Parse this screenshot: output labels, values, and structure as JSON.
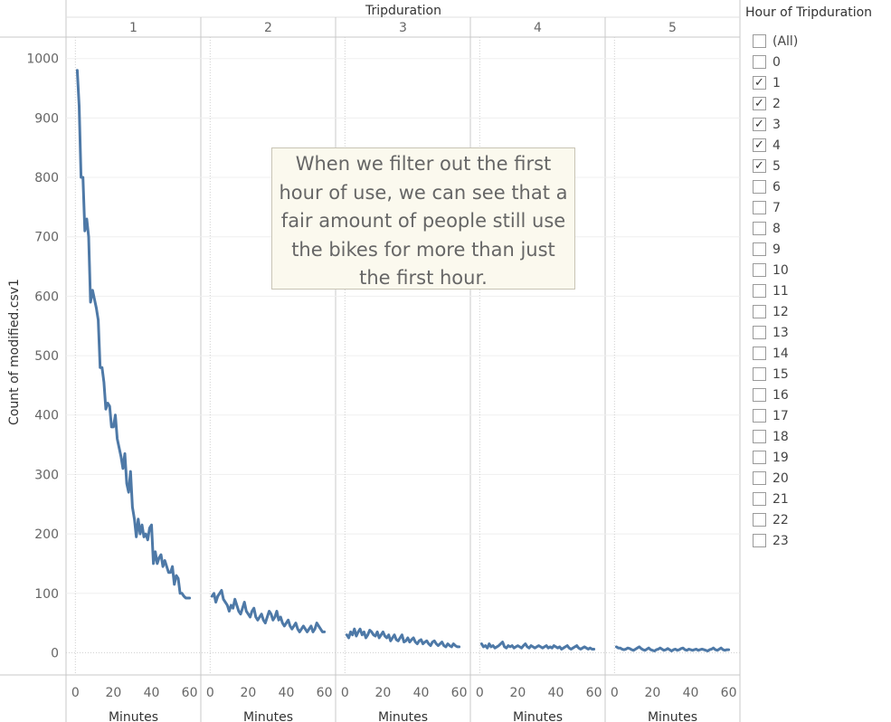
{
  "chart_data": {
    "type": "line",
    "title": "Tripduration",
    "ylabel": "Count of modified.csv1",
    "xlabel": "Minutes",
    "ylim": [
      -10,
      1030
    ],
    "yticks": [
      "0",
      "100",
      "200",
      "300",
      "400",
      "500",
      "600",
      "700",
      "800",
      "900",
      "1000"
    ],
    "ytick_values": [
      0,
      100,
      200,
      300,
      400,
      500,
      600,
      700,
      800,
      900,
      1000
    ],
    "xlim": [
      -3,
      64
    ],
    "xticks": [
      "0",
      "20",
      "40",
      "60"
    ],
    "xtick_values": [
      0,
      20,
      40,
      60
    ],
    "line_color": "#4e79a7",
    "grid": true,
    "panels": [
      {
        "label": "1",
        "x_label": "Minutes",
        "x": [
          1,
          2,
          3,
          4,
          5,
          6,
          7,
          8,
          9,
          10,
          11,
          12,
          13,
          14,
          15,
          16,
          17,
          18,
          19,
          20,
          21,
          22,
          23,
          24,
          25,
          26,
          27,
          28,
          29,
          30,
          31,
          32,
          33,
          34,
          35,
          36,
          37,
          38,
          39,
          40,
          41,
          42,
          43,
          44,
          45,
          46,
          47,
          48,
          49,
          50,
          51,
          52,
          53,
          54,
          55,
          56,
          57,
          58,
          59,
          60
        ],
        "values": [
          980,
          920,
          800,
          800,
          710,
          730,
          700,
          590,
          610,
          595,
          580,
          560,
          480,
          480,
          455,
          410,
          420,
          415,
          380,
          380,
          400,
          360,
          345,
          330,
          310,
          335,
          285,
          270,
          305,
          245,
          225,
          195,
          225,
          200,
          215,
          195,
          200,
          190,
          210,
          215,
          150,
          170,
          150,
          160,
          165,
          145,
          155,
          145,
          135,
          135,
          145,
          115,
          130,
          125,
          100,
          100,
          95,
          92,
          92,
          92
        ]
      },
      {
        "label": "2",
        "x_label": "Minutes",
        "x": [
          1,
          2,
          3,
          4,
          5,
          6,
          7,
          8,
          9,
          10,
          11,
          12,
          13,
          14,
          15,
          16,
          17,
          18,
          19,
          20,
          21,
          22,
          23,
          24,
          25,
          26,
          27,
          28,
          29,
          30,
          31,
          32,
          33,
          34,
          35,
          36,
          37,
          38,
          39,
          40,
          41,
          42,
          43,
          44,
          45,
          46,
          47,
          48,
          49,
          50,
          51,
          52,
          53,
          54,
          55,
          56,
          57,
          58,
          59,
          60
        ],
        "values": [
          95,
          100,
          85,
          95,
          100,
          105,
          90,
          85,
          80,
          70,
          80,
          75,
          90,
          80,
          70,
          65,
          75,
          85,
          70,
          65,
          60,
          70,
          75,
          60,
          55,
          60,
          65,
          55,
          50,
          60,
          70,
          65,
          55,
          60,
          70,
          55,
          60,
          50,
          45,
          50,
          55,
          45,
          40,
          45,
          50,
          40,
          35,
          40,
          45,
          40,
          35,
          40,
          45,
          35,
          40,
          50,
          45,
          40,
          35,
          35
        ]
      },
      {
        "label": "3",
        "x_label": "Minutes",
        "x": [
          1,
          2,
          3,
          4,
          5,
          6,
          7,
          8,
          9,
          10,
          11,
          12,
          13,
          14,
          15,
          16,
          17,
          18,
          19,
          20,
          21,
          22,
          23,
          24,
          25,
          26,
          27,
          28,
          29,
          30,
          31,
          32,
          33,
          34,
          35,
          36,
          37,
          38,
          39,
          40,
          41,
          42,
          43,
          44,
          45,
          46,
          47,
          48,
          49,
          50,
          51,
          52,
          53,
          54,
          55,
          56,
          57,
          58,
          59,
          60
        ],
        "values": [
          30,
          25,
          35,
          30,
          40,
          28,
          35,
          40,
          30,
          35,
          25,
          30,
          38,
          35,
          30,
          28,
          35,
          25,
          30,
          35,
          28,
          25,
          30,
          20,
          25,
          30,
          22,
          20,
          25,
          30,
          18,
          20,
          25,
          18,
          22,
          25,
          18,
          15,
          20,
          22,
          15,
          18,
          20,
          15,
          12,
          18,
          20,
          15,
          12,
          15,
          18,
          12,
          10,
          15,
          12,
          10,
          15,
          12,
          10,
          10
        ]
      },
      {
        "label": "4",
        "x_label": "Minutes",
        "x": [
          1,
          2,
          3,
          4,
          5,
          6,
          7,
          8,
          9,
          10,
          11,
          12,
          13,
          14,
          15,
          16,
          17,
          18,
          19,
          20,
          21,
          22,
          23,
          24,
          25,
          26,
          27,
          28,
          29,
          30,
          31,
          32,
          33,
          34,
          35,
          36,
          37,
          38,
          39,
          40,
          41,
          42,
          43,
          44,
          45,
          46,
          47,
          48,
          49,
          50,
          51,
          52,
          53,
          54,
          55,
          56,
          57,
          58,
          59,
          60
        ],
        "values": [
          15,
          10,
          12,
          8,
          15,
          10,
          12,
          8,
          10,
          12,
          15,
          18,
          10,
          8,
          12,
          10,
          12,
          8,
          10,
          12,
          10,
          8,
          12,
          15,
          10,
          8,
          12,
          10,
          8,
          10,
          12,
          10,
          8,
          10,
          12,
          8,
          10,
          8,
          12,
          10,
          8,
          10,
          6,
          8,
          10,
          12,
          8,
          6,
          8,
          10,
          12,
          8,
          6,
          8,
          10,
          8,
          6,
          8,
          6,
          6
        ]
      },
      {
        "label": "5",
        "x_label": "Minutes",
        "x": [
          1,
          2,
          3,
          4,
          5,
          6,
          7,
          8,
          9,
          10,
          11,
          12,
          13,
          14,
          15,
          16,
          17,
          18,
          19,
          20,
          21,
          22,
          23,
          24,
          25,
          26,
          27,
          28,
          29,
          30,
          31,
          32,
          33,
          34,
          35,
          36,
          37,
          38,
          39,
          40,
          41,
          42,
          43,
          44,
          45,
          46,
          47,
          48,
          49,
          50,
          51,
          52,
          53,
          54,
          55,
          56,
          57,
          58,
          59,
          60
        ],
        "values": [
          10,
          8,
          8,
          6,
          5,
          6,
          8,
          7,
          5,
          4,
          6,
          8,
          10,
          7,
          5,
          4,
          6,
          8,
          5,
          4,
          3,
          5,
          6,
          8,
          6,
          4,
          5,
          7,
          5,
          3,
          5,
          6,
          4,
          5,
          7,
          8,
          5,
          4,
          6,
          5,
          4,
          5,
          6,
          4,
          5,
          6,
          5,
          4,
          3,
          5,
          6,
          8,
          5,
          4,
          6,
          8,
          5,
          4,
          5,
          5
        ]
      }
    ]
  },
  "annotation": {
    "lines": [
      "When we filter out the first",
      "hour of use, we can see that a",
      "fair amount of people still use",
      "the bikes for more than just",
      "the first hour."
    ]
  },
  "legend": {
    "title": "Hour of Tripduration",
    "items": [
      {
        "label": "(All)",
        "checked": false
      },
      {
        "label": "0",
        "checked": false
      },
      {
        "label": "1",
        "checked": true
      },
      {
        "label": "2",
        "checked": true
      },
      {
        "label": "3",
        "checked": true
      },
      {
        "label": "4",
        "checked": true
      },
      {
        "label": "5",
        "checked": true
      },
      {
        "label": "6",
        "checked": false
      },
      {
        "label": "7",
        "checked": false
      },
      {
        "label": "8",
        "checked": false
      },
      {
        "label": "9",
        "checked": false
      },
      {
        "label": "10",
        "checked": false
      },
      {
        "label": "11",
        "checked": false
      },
      {
        "label": "12",
        "checked": false
      },
      {
        "label": "13",
        "checked": false
      },
      {
        "label": "14",
        "checked": false
      },
      {
        "label": "15",
        "checked": false
      },
      {
        "label": "16",
        "checked": false
      },
      {
        "label": "17",
        "checked": false
      },
      {
        "label": "18",
        "checked": false
      },
      {
        "label": "19",
        "checked": false
      },
      {
        "label": "20",
        "checked": false
      },
      {
        "label": "21",
        "checked": false
      },
      {
        "label": "22",
        "checked": false
      },
      {
        "label": "23",
        "checked": false
      }
    ]
  }
}
